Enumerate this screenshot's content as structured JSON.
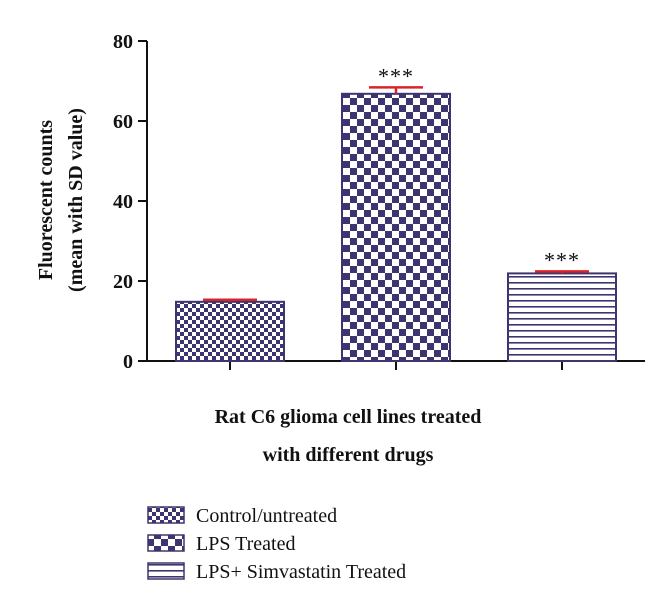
{
  "chart_data": {
    "type": "bar",
    "categories": [
      "Control/untreated",
      "LPS Treated",
      "LPS+ Simvastatin Treated"
    ],
    "values": [
      14.8,
      66.8,
      21.9
    ],
    "errors": [
      0.5,
      1.6,
      0.5
    ],
    "significance": [
      "",
      "***",
      "***"
    ],
    "patterns": [
      "small-checker",
      "large-checker",
      "horizontal-lines"
    ],
    "xlabel_lines": [
      "Rat C6 glioma cell lines treated",
      "with different drugs"
    ],
    "ylabel_lines": [
      "Fluorescent counts",
      "(mean with SD value)"
    ],
    "yticks": [
      0,
      20,
      40,
      60,
      80
    ],
    "ylim": [
      0,
      80
    ],
    "legend_position": "bottom",
    "colors": {
      "bar": "#3d3570",
      "error": "#d9252a",
      "axis": "#111111"
    }
  }
}
